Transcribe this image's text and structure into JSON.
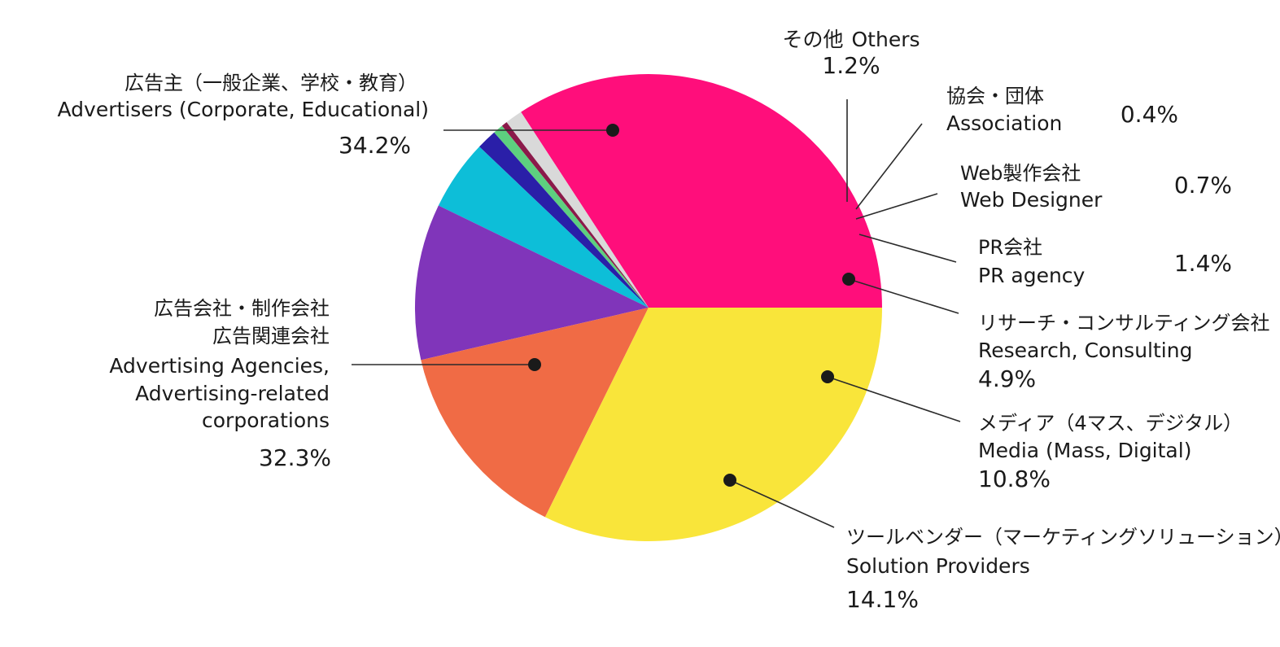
{
  "chart_data": {
    "type": "pie",
    "slices": [
      {
        "label_jp": "広告主（一般企業、学校・教育）",
        "label_en": "Advertisers (Corporate, Educational)",
        "value": 34.2,
        "value_label": "34.2%",
        "color": "#FF0E7B"
      },
      {
        "label_jp": "その他",
        "label_en": "Others",
        "value": 1.2,
        "value_label": "1.2%",
        "color": "#D9D9D9"
      },
      {
        "label_jp": "協会・団体",
        "label_en": "Association",
        "value": 0.4,
        "value_label": "0.4%",
        "color": "#8B1A4A"
      },
      {
        "label_jp": "Web製作会社",
        "label_en": "Web Designer",
        "value": 0.7,
        "value_label": "0.7%",
        "color": "#5DD07F"
      },
      {
        "label_jp": "PR会社",
        "label_en": "PR agency",
        "value": 1.4,
        "value_label": "1.4%",
        "color": "#2A1FA8"
      },
      {
        "label_jp": "リサーチ・コンサルティング会社",
        "label_en": "Research, Consulting",
        "value": 4.9,
        "value_label": "4.9%",
        "color": "#0DBED8"
      },
      {
        "label_jp": "メディア（4マス、デジタル）",
        "label_en": "Media (Mass, Digital)",
        "value": 10.8,
        "value_label": "10.8%",
        "color": "#8035BA"
      },
      {
        "label_jp": "ツールベンダー（マーケティングソリューション）",
        "label_en": "Solution Providers",
        "value": 14.1,
        "value_label": "14.1%",
        "color": "#F06B45"
      },
      {
        "label_jp": "広告会社・制作会社",
        "label_jp2": "広告関連会社",
        "label_en": "Advertising Agencies,",
        "label_en2": "Advertising-related",
        "label_en3": "corporations",
        "value": 32.3,
        "value_label": "32.3%",
        "color": "#F9E53A"
      }
    ],
    "start_angle_deg": 0,
    "direction": "counterclockwise"
  },
  "colors": {
    "leader_line": "#2b2b2b",
    "dot": "#1a1a1a"
  }
}
